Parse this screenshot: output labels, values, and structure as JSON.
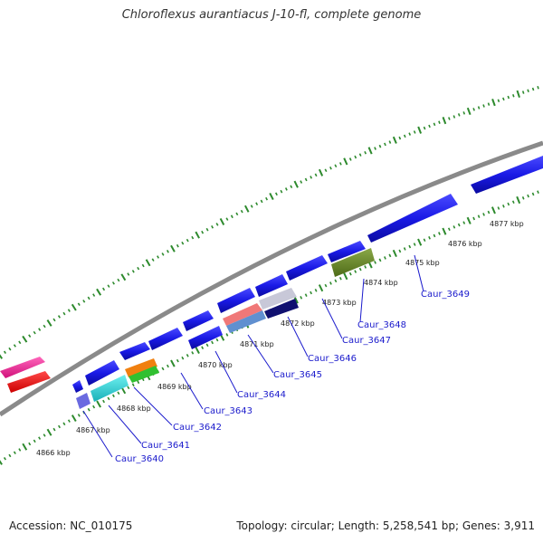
{
  "title": "Chloroflexus aurantiacus J-10-fl, complete genome",
  "footer": {
    "accession": "Accession: NC_010175",
    "stats": "Topology: circular; Length: 5,258,541 bp; Genes: 3,911"
  },
  "colors": {
    "backbone": "#8a8a8a",
    "ticks": "#2d8a2d",
    "forward_gene": "#1a1ae6",
    "label": "#1a1acc"
  },
  "kbp_ticks": [
    "4866 kbp",
    "4867 kbp",
    "4868 kbp",
    "4869 kbp",
    "4870 kbp",
    "4871 kbp",
    "4872 kbp",
    "4873 kbp",
    "4874 kbp",
    "4875 kbp",
    "4876 kbp",
    "4877 kbp"
  ],
  "gene_labels": [
    "Caur_3640",
    "Caur_3641",
    "Caur_3642",
    "Caur_3643",
    "Caur_3644",
    "Caur_3645",
    "Caur_3646",
    "Caur_3647",
    "Caur_3648",
    "Caur_3649"
  ]
}
